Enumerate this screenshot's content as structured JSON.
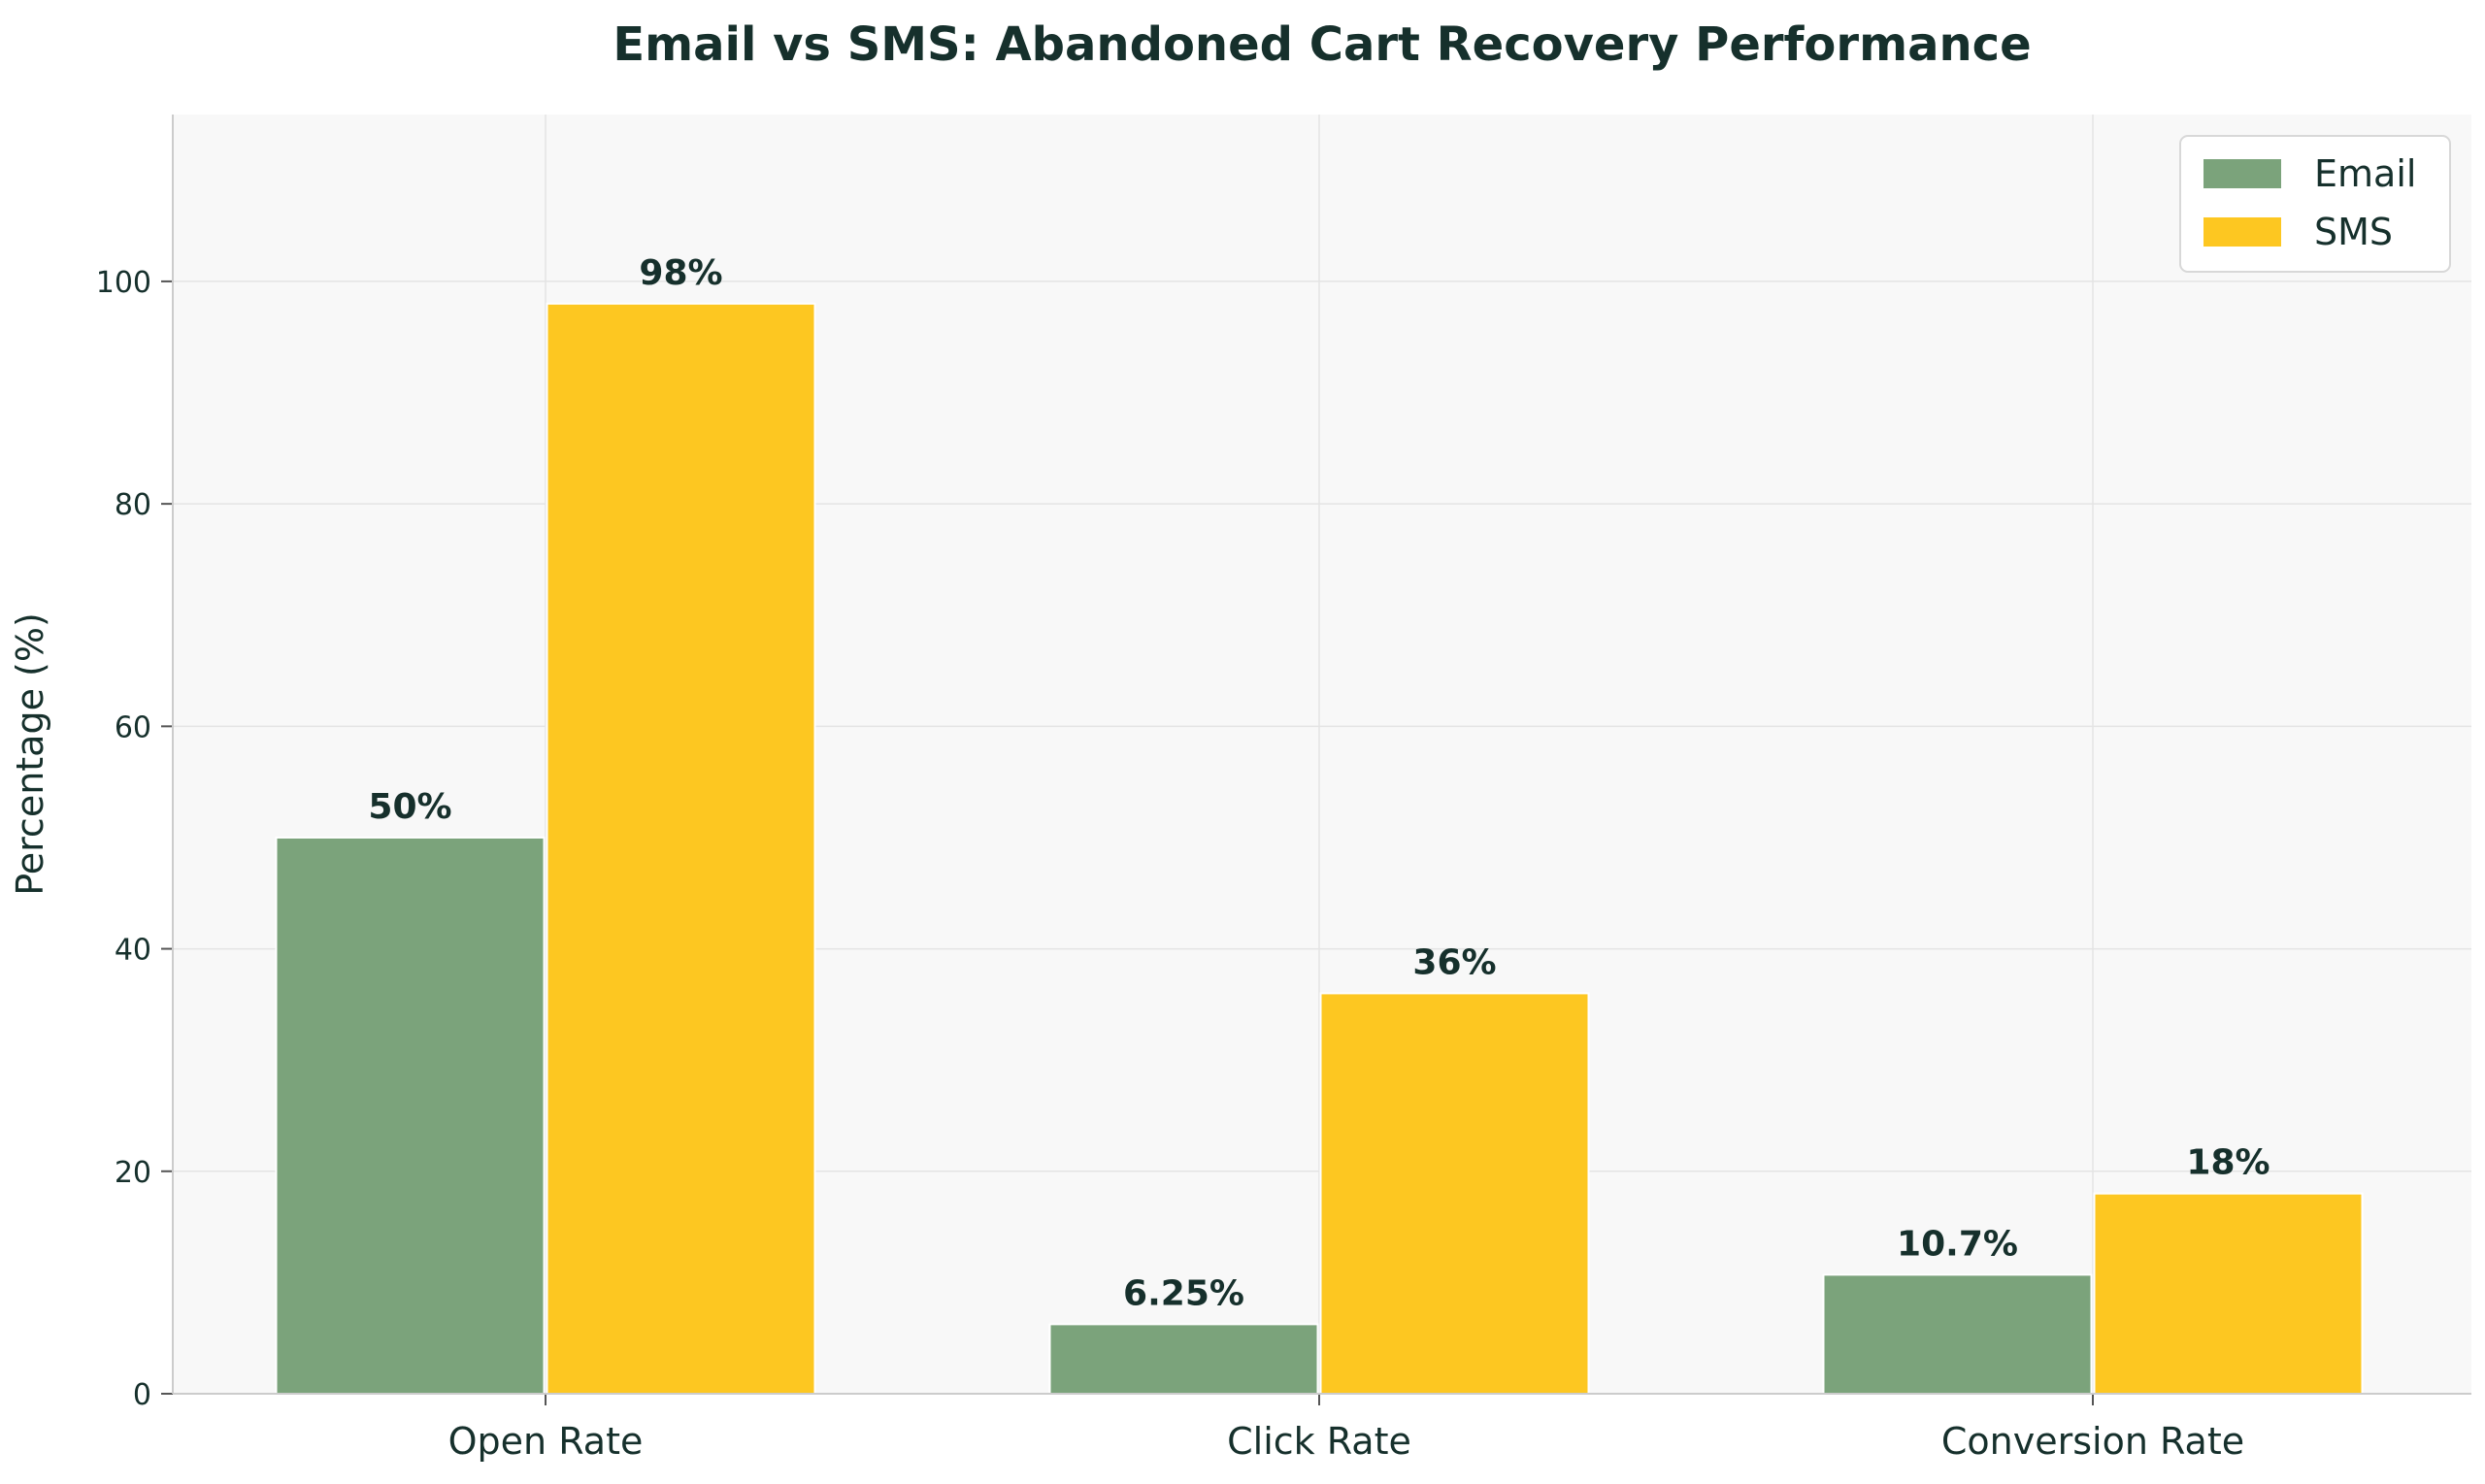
{
  "chart_data": {
    "type": "bar",
    "title": "Email vs SMS: Abandoned Cart Recovery Performance",
    "xlabel": "",
    "ylabel": "Percentage (%)",
    "ylim": [
      0,
      115
    ],
    "yticks": [
      0,
      20,
      40,
      60,
      80,
      100
    ],
    "categories": [
      "Open Rate",
      "Click Rate",
      "Conversion Rate"
    ],
    "series": [
      {
        "name": "Email",
        "color": "#7ba37b",
        "values": [
          50,
          6.25,
          10.7
        ],
        "labels": [
          "50%",
          "6.25%",
          "10.7%"
        ]
      },
      {
        "name": "SMS",
        "color": "#fdc721",
        "values": [
          98,
          36,
          18
        ],
        "labels": [
          "98%",
          "36%",
          "18%"
        ]
      }
    ],
    "grid": true,
    "legend_position": "top-right",
    "plot_background": "#f8f8f8"
  }
}
